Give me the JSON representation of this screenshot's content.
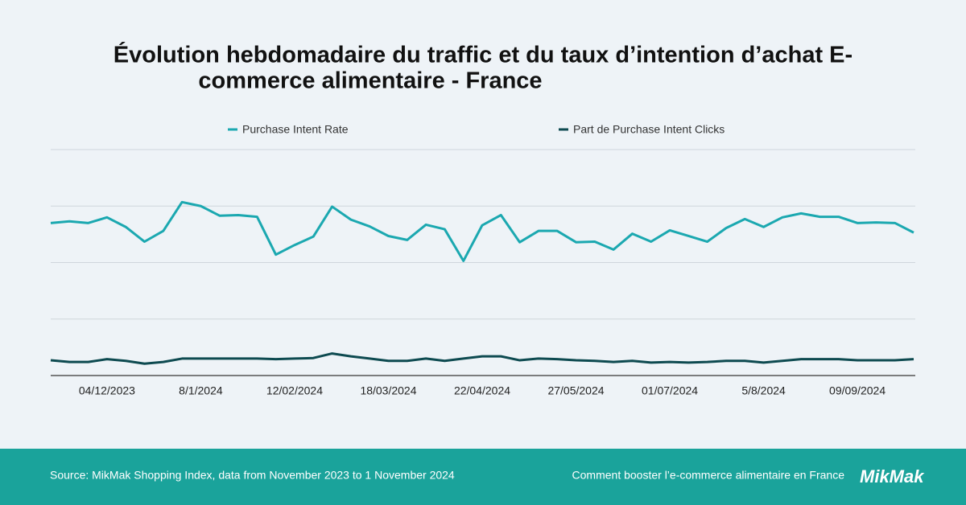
{
  "chart_data": {
    "type": "line",
    "title": [
      "Évolution hebdomadaire du traffic et du taux d’intention d’achat E-",
      "commerce alimentaire - France"
    ],
    "categories": [
      null,
      null,
      null,
      "04/12/2023",
      null,
      null,
      null,
      null,
      "8/1/2024",
      null,
      null,
      null,
      null,
      "12/02/2024",
      null,
      null,
      null,
      null,
      "18/03/2024",
      null,
      null,
      null,
      null,
      "22/04/2024",
      null,
      null,
      null,
      null,
      "27/05/2024",
      null,
      null,
      null,
      null,
      "01/07/2024",
      null,
      null,
      null,
      null,
      "5/8/2024",
      null,
      null,
      null,
      null,
      "09/09/2024",
      null,
      null,
      null
    ],
    "series": [
      {
        "name": "Purchase Intent Rate",
        "color": "#1ba8b0",
        "values": [
          2.7,
          2.73,
          2.7,
          2.8,
          2.63,
          2.37,
          2.56,
          3.07,
          3.0,
          2.83,
          2.84,
          2.81,
          2.14,
          2.31,
          2.46,
          2.99,
          2.76,
          2.64,
          2.47,
          2.4,
          2.67,
          2.59,
          2.03,
          2.66,
          2.84,
          2.36,
          2.56,
          2.56,
          2.36,
          2.37,
          2.23,
          2.51,
          2.37,
          2.57,
          2.47,
          2.37,
          2.61,
          2.77,
          2.63,
          2.8,
          2.87,
          2.81,
          2.81,
          2.7,
          2.71,
          2.7,
          2.53
        ]
      },
      {
        "name": "Part de Purchase Intent Clicks",
        "color": "#0d4a50",
        "values": [
          0.27,
          0.24,
          0.24,
          0.29,
          0.26,
          0.21,
          0.24,
          0.3,
          0.3,
          0.3,
          0.3,
          0.3,
          0.29,
          0.3,
          0.31,
          0.39,
          0.34,
          0.3,
          0.26,
          0.26,
          0.3,
          0.26,
          0.3,
          0.34,
          0.34,
          0.27,
          0.3,
          0.29,
          0.27,
          0.26,
          0.24,
          0.26,
          0.23,
          0.24,
          0.23,
          0.24,
          0.26,
          0.26,
          0.23,
          0.26,
          0.29,
          0.29,
          0.29,
          0.27,
          0.27,
          0.27,
          0.29
        ]
      }
    ],
    "ylim": [
      0,
      4
    ],
    "yticks": [
      0,
      1,
      2,
      3,
      4
    ],
    "show_ytick_labels": false,
    "grid": true,
    "legend": "top"
  },
  "footer": {
    "source": "Source: MikMak Shopping Index, data from November 2023 to 1 November 2024",
    "link": "Comment booster l’e-commerce alimentaire en France",
    "logo": "MikMak"
  }
}
